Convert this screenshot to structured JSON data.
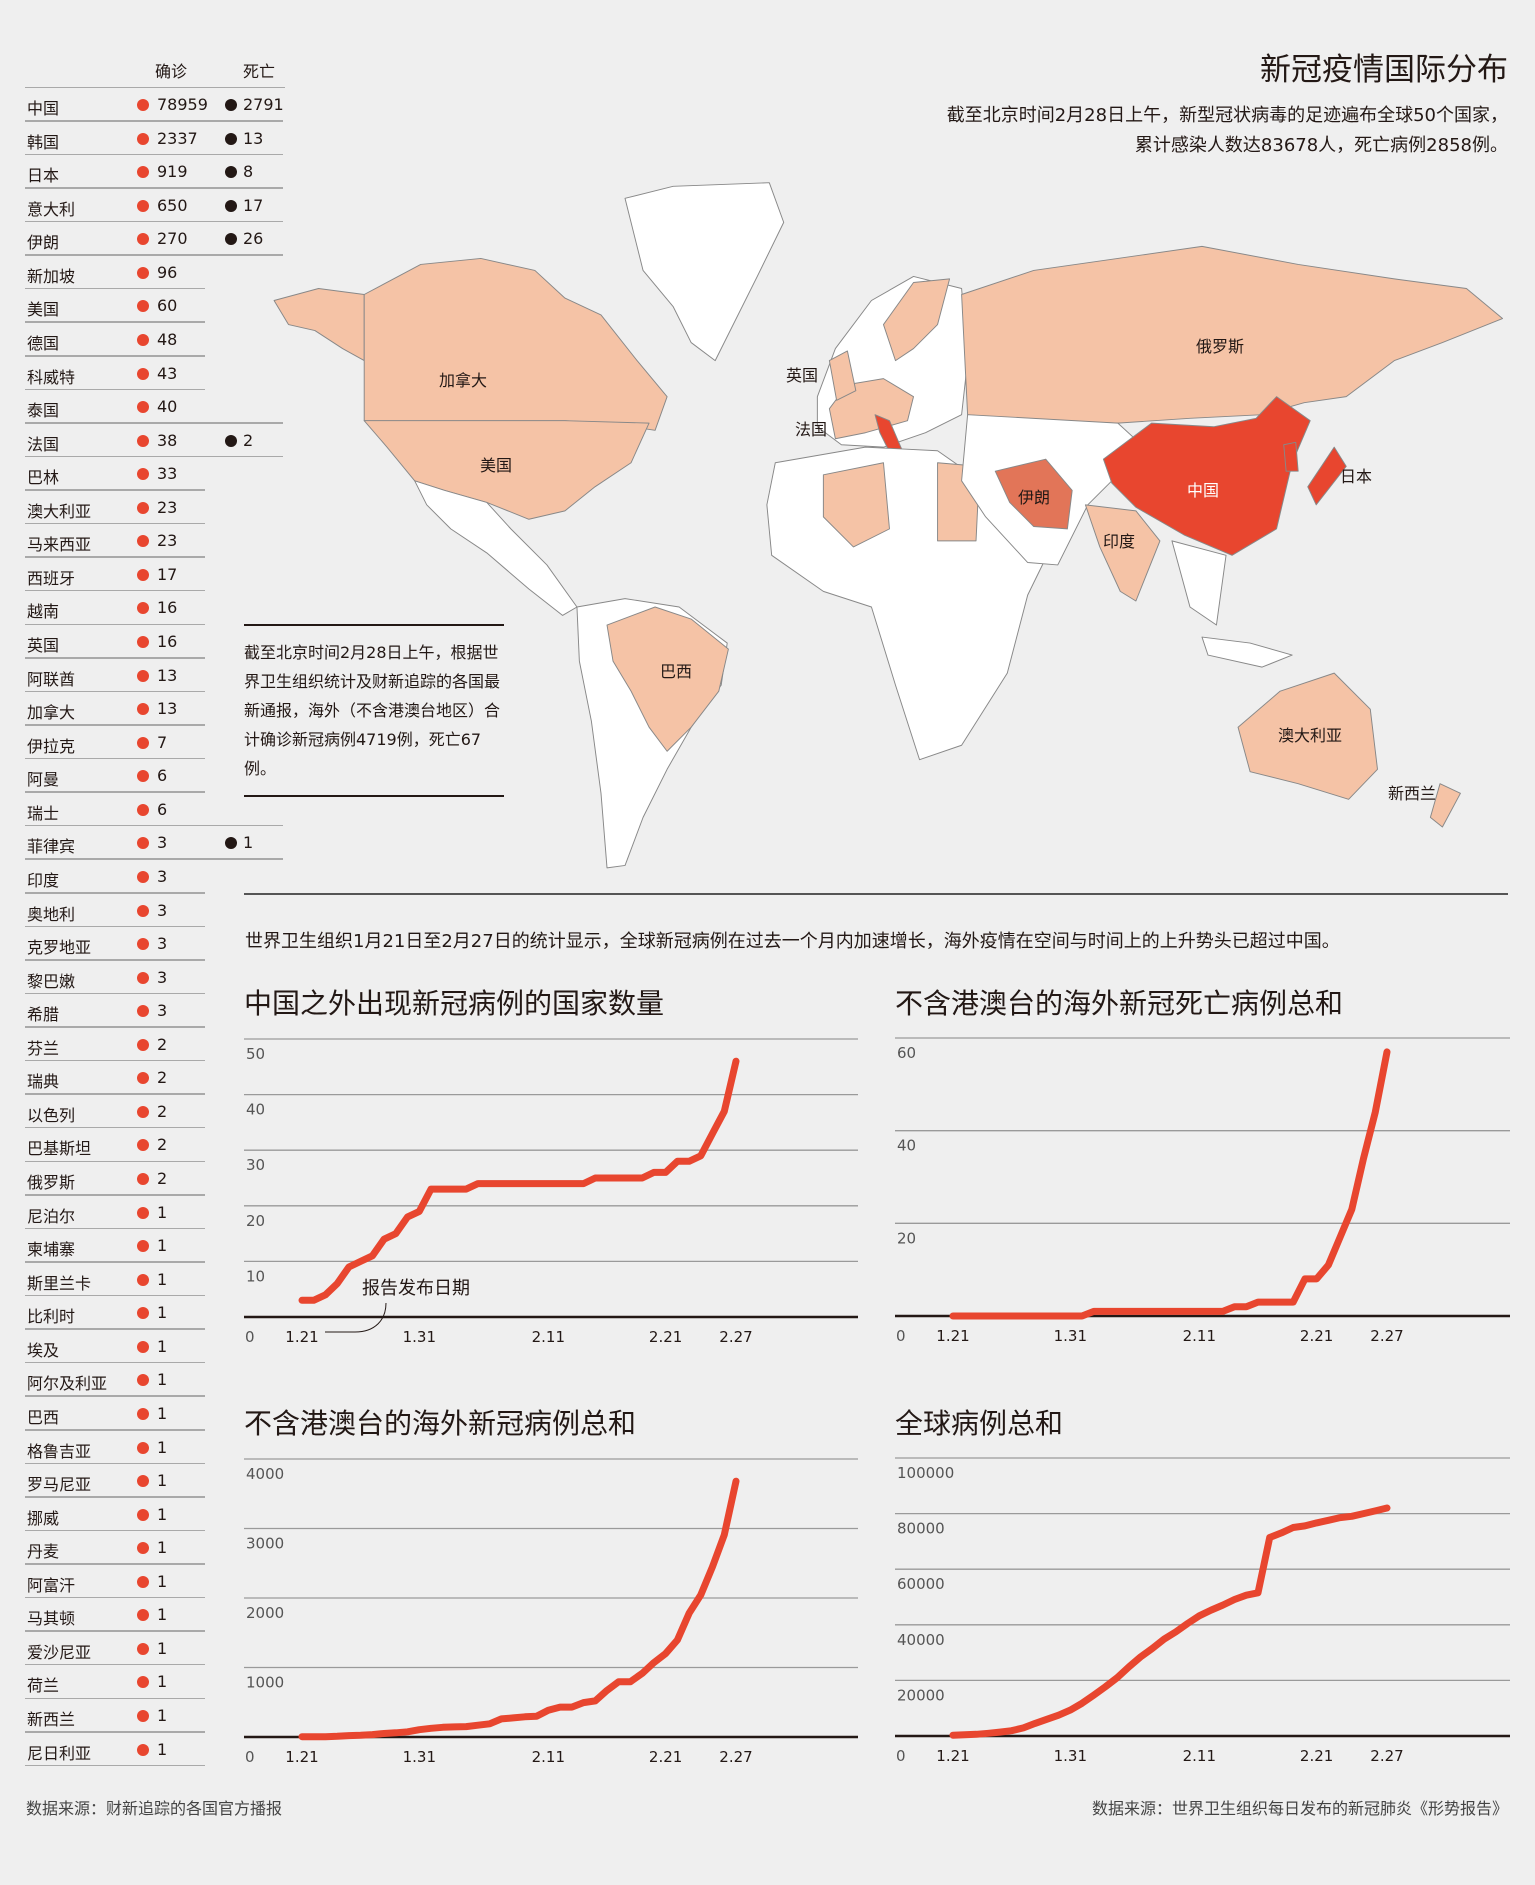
{
  "header": {
    "title": "新冠疫情国际分布",
    "subtitle_lines": [
      "截至北京时间2月28日上午，新型冠状病毒的足迹遍布全球50个国家，",
      "累计感染人数达83678人，死亡病例2858例。"
    ]
  },
  "table": {
    "col_confirmed": "确诊",
    "col_deaths": "死亡",
    "rows": [
      {
        "country": "中国",
        "confirmed": "78959",
        "deaths": "2791"
      },
      {
        "country": "韩国",
        "confirmed": "2337",
        "deaths": "13"
      },
      {
        "country": "日本",
        "confirmed": "919",
        "deaths": "8"
      },
      {
        "country": "意大利",
        "confirmed": "650",
        "deaths": "17"
      },
      {
        "country": "伊朗",
        "confirmed": "270",
        "deaths": "26"
      },
      {
        "country": "新加坡",
        "confirmed": "96"
      },
      {
        "country": "美国",
        "confirmed": "60"
      },
      {
        "country": "德国",
        "confirmed": "48"
      },
      {
        "country": "科威特",
        "confirmed": "43"
      },
      {
        "country": "泰国",
        "confirmed": "40"
      },
      {
        "country": "法国",
        "confirmed": "38",
        "deaths": "2"
      },
      {
        "country": "巴林",
        "confirmed": "33"
      },
      {
        "country": "澳大利亚",
        "confirmed": "23"
      },
      {
        "country": "马来西亚",
        "confirmed": "23"
      },
      {
        "country": "西班牙",
        "confirmed": "17"
      },
      {
        "country": "越南",
        "confirmed": "16"
      },
      {
        "country": "英国",
        "confirmed": "16"
      },
      {
        "country": "阿联酋",
        "confirmed": "13"
      },
      {
        "country": "加拿大",
        "confirmed": "13"
      },
      {
        "country": "伊拉克",
        "confirmed": "7"
      },
      {
        "country": "阿曼",
        "confirmed": "6"
      },
      {
        "country": "瑞士",
        "confirmed": "6"
      },
      {
        "country": "菲律宾",
        "confirmed": "3",
        "deaths": "1"
      },
      {
        "country": "印度",
        "confirmed": "3"
      },
      {
        "country": "奥地利",
        "confirmed": "3"
      },
      {
        "country": "克罗地亚",
        "confirmed": "3"
      },
      {
        "country": "黎巴嫩",
        "confirmed": "3"
      },
      {
        "country": "希腊",
        "confirmed": "3"
      },
      {
        "country": "芬兰",
        "confirmed": "2"
      },
      {
        "country": "瑞典",
        "confirmed": "2"
      },
      {
        "country": "以色列",
        "confirmed": "2"
      },
      {
        "country": "巴基斯坦",
        "confirmed": "2"
      },
      {
        "country": "俄罗斯",
        "confirmed": "2"
      },
      {
        "country": "尼泊尔",
        "confirmed": "1"
      },
      {
        "country": "柬埔寨",
        "confirmed": "1"
      },
      {
        "country": "斯里兰卡",
        "confirmed": "1"
      },
      {
        "country": "比利时",
        "confirmed": "1"
      },
      {
        "country": "埃及",
        "confirmed": "1"
      },
      {
        "country": "阿尔及利亚",
        "confirmed": "1"
      },
      {
        "country": "巴西",
        "confirmed": "1"
      },
      {
        "country": "格鲁吉亚",
        "confirmed": "1"
      },
      {
        "country": "罗马尼亚",
        "confirmed": "1"
      },
      {
        "country": "挪威",
        "confirmed": "1"
      },
      {
        "country": "丹麦",
        "confirmed": "1"
      },
      {
        "country": "阿富汗",
        "confirmed": "1"
      },
      {
        "country": "马其顿",
        "confirmed": "1"
      },
      {
        "country": "爱沙尼亚",
        "confirmed": "1"
      },
      {
        "country": "荷兰",
        "confirmed": "1"
      },
      {
        "country": "新西兰",
        "confirmed": "1"
      },
      {
        "country": "尼日利亚",
        "confirmed": "1"
      }
    ]
  },
  "map": {
    "labels": [
      "加拿大",
      "美国",
      "巴西",
      "英国",
      "法国",
      "俄罗斯",
      "中国",
      "伊朗",
      "印度",
      "日本",
      "澳大利亚",
      "新西兰"
    ]
  },
  "note": "截至北京时间2月28日上午，根据世界卫生组织统计及财新追踪的各国最新通报，海外（不含港澳台地区）合计确诊新冠病例4719例，死亡67例。",
  "intro": "世界卫生组织1月21日至2月27日的统计显示，全球新冠病例在过去一个月内加速增长，海外疫情在空间与时间上的上升势头已超过中国。",
  "colors": {
    "accent": "#e8462f",
    "china": "#e8462f",
    "iran": "#e27558",
    "high": "#f5c3a6",
    "background": "#efefef",
    "dot_deaths": "#231815"
  },
  "footer": {
    "left": "数据来源：财新追踪的各国官方播报",
    "right": "数据来源：世界卫生组织每日发布的新冠肺炎《形势报告》"
  },
  "chart_data": [
    {
      "type": "line",
      "title": "中国之外出现新冠病例的国家数量",
      "annotation": "报告发布日期",
      "ylim": [
        0,
        50
      ],
      "yticks": [
        "10",
        "20",
        "30",
        "40",
        "50"
      ],
      "xticks": [
        "1.21",
        "1.31",
        "2.11",
        "2.21",
        "2.27"
      ],
      "zero_label": "0",
      "x": [
        "1.21",
        "1.22",
        "1.23",
        "1.24",
        "1.25",
        "1.26",
        "1.27",
        "1.28",
        "1.29",
        "1.30",
        "1.31",
        "2.1",
        "2.2",
        "2.3",
        "2.4",
        "2.5",
        "2.6",
        "2.7",
        "2.8",
        "2.9",
        "2.10",
        "2.11",
        "2.12",
        "2.13",
        "2.14",
        "2.15",
        "2.16",
        "2.17",
        "2.18",
        "2.19",
        "2.20",
        "2.21",
        "2.22",
        "2.23",
        "2.24",
        "2.25",
        "2.26",
        "2.27"
      ],
      "values": [
        3,
        3,
        4,
        6,
        9,
        10,
        11,
        14,
        15,
        18,
        19,
        23,
        23,
        23,
        23,
        24,
        24,
        24,
        24,
        24,
        24,
        24,
        24,
        24,
        24,
        25,
        25,
        25,
        25,
        25,
        26,
        26,
        28,
        28,
        29,
        33,
        37,
        46
      ]
    },
    {
      "type": "line",
      "title": "不含港澳台的海外新冠死亡病例总和",
      "ylim": [
        0,
        60
      ],
      "yticks": [
        "20",
        "40",
        "60"
      ],
      "xticks": [
        "1.21",
        "1.31",
        "2.11",
        "2.21",
        "2.27"
      ],
      "zero_label": "0",
      "values": [
        0,
        0,
        0,
        0,
        0,
        0,
        0,
        0,
        0,
        0,
        0,
        0,
        1,
        1,
        1,
        1,
        1,
        1,
        1,
        1,
        1,
        1,
        1,
        1,
        2,
        2,
        3,
        3,
        3,
        3,
        8,
        8,
        11,
        17,
        23,
        34,
        44,
        57
      ]
    },
    {
      "type": "line",
      "title": "不含港澳台的海外新冠病例总和",
      "ylim": [
        0,
        4000
      ],
      "yticks": [
        "1000",
        "2000",
        "3000",
        "4000"
      ],
      "xticks": [
        "1.21",
        "1.31",
        "2.11",
        "2.21",
        "2.27"
      ],
      "zero_label": "0",
      "values": [
        4,
        4,
        5,
        10,
        20,
        25,
        35,
        50,
        60,
        75,
        105,
        125,
        140,
        145,
        150,
        170,
        190,
        260,
        275,
        290,
        300,
        385,
        430,
        430,
        495,
        520,
        670,
        795,
        795,
        915,
        1070,
        1200,
        1395,
        1780,
        2045,
        2450,
        2910,
        3680
      ]
    },
    {
      "type": "line",
      "title": "全球病例总和",
      "ylim": [
        0,
        100000
      ],
      "yticks": [
        "20000",
        "40000",
        "60000",
        "80000",
        "100000"
      ],
      "xticks": [
        "1.21",
        "1.31",
        "2.11",
        "2.21",
        "2.27"
      ],
      "zero_label": "0",
      "values": [
        300,
        440,
        600,
        960,
        1400,
        1900,
        2900,
        4550,
        6000,
        7500,
        9300,
        11750,
        14700,
        17720,
        20960,
        24900,
        28500,
        31500,
        34850,
        37500,
        40480,
        43230,
        45270,
        47070,
        49100,
        50660,
        51500,
        71400,
        73050,
        75000,
        75570,
        76650,
        77600,
        78560,
        79040,
        80000,
        80960,
        82000
      ]
    }
  ]
}
